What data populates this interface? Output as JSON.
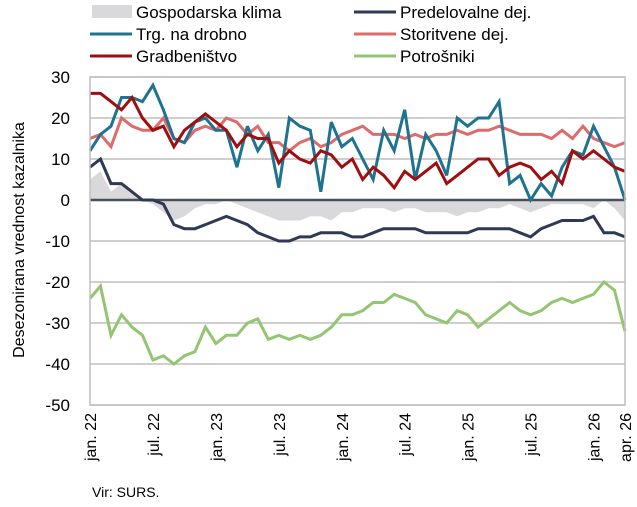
{
  "chart_data": {
    "type": "line",
    "title": "",
    "xlabel": "",
    "ylabel": "Desezonirana vrednost kazalnika",
    "ylim": [
      -50,
      30
    ],
    "yticks": [
      30,
      20,
      10,
      0,
      -10,
      -20,
      -30,
      -40,
      -50
    ],
    "grid": true,
    "legend_position": "top",
    "x_start": "jan. 22",
    "x_end": "apr. 26",
    "xtick_labels": [
      {
        "index": 0,
        "label": "jan. 22"
      },
      {
        "index": 6,
        "label": "jul. 22"
      },
      {
        "index": 12,
        "label": "jan. 23"
      },
      {
        "index": 18,
        "label": "jul. 23"
      },
      {
        "index": 24,
        "label": "jan. 24"
      },
      {
        "index": 30,
        "label": "jul. 24"
      },
      {
        "index": 36,
        "label": "jan. 25"
      },
      {
        "index": 42,
        "label": "jul. 25"
      },
      {
        "index": 48,
        "label": "jan. 26"
      },
      {
        "index": 51,
        "label": "apr. 26"
      }
    ],
    "series": [
      {
        "name": "Gospodarska klima",
        "kind": "area",
        "color": "#d9d9db",
        "values": [
          5,
          7,
          2,
          4,
          2,
          0,
          -1,
          -3,
          -5,
          -4,
          -2,
          -1,
          -1,
          0,
          -1,
          -2,
          -3,
          -4,
          -5,
          -5,
          -5,
          -4,
          -4,
          -5,
          -3,
          -3,
          -2,
          -2,
          -2,
          -3,
          -2,
          -2,
          -3,
          -3,
          -3,
          -4,
          -3,
          -3,
          -2,
          -2,
          -1,
          -2,
          -3,
          -2,
          -1,
          -1,
          -1,
          -1,
          -2,
          0,
          -2,
          -5
        ]
      },
      {
        "name": "Predelovalne dej.",
        "kind": "line",
        "color": "#2e3a55",
        "values": [
          8,
          10,
          4,
          4,
          2,
          0,
          0,
          -1,
          -6,
          -7,
          -7,
          -6,
          -5,
          -4,
          -5,
          -6,
          -8,
          -9,
          -10,
          -10,
          -9,
          -9,
          -8,
          -8,
          -8,
          -9,
          -9,
          -8,
          -7,
          -7,
          -7,
          -7,
          -8,
          -8,
          -8,
          -8,
          -8,
          -7,
          -7,
          -7,
          -7,
          -8,
          -9,
          -7,
          -6,
          -5,
          -5,
          -5,
          -4,
          -8,
          -8,
          -9
        ]
      },
      {
        "name": "Trg. na drobno",
        "kind": "line",
        "color": "#1f7391",
        "values": [
          12,
          16,
          18,
          25,
          25,
          24,
          28,
          22,
          15,
          14,
          19,
          20,
          17,
          17,
          8,
          18,
          12,
          16,
          3,
          20,
          18,
          17,
          2,
          19,
          13,
          15,
          10,
          5,
          17,
          12,
          22,
          5,
          16,
          12,
          6,
          20,
          18,
          20,
          20,
          24,
          4,
          6,
          0,
          4,
          1,
          8,
          12,
          11,
          18,
          13,
          8,
          0
        ]
      },
      {
        "name": "Storitvene dej.",
        "kind": "line",
        "color": "#dd6b6b",
        "values": [
          15,
          16,
          13,
          20,
          18,
          17,
          17,
          20,
          15,
          14,
          17,
          18,
          17,
          20,
          19,
          16,
          18,
          14,
          14,
          12,
          14,
          15,
          13,
          14,
          16,
          17,
          18,
          16,
          16,
          16,
          15,
          16,
          15,
          16,
          16,
          17,
          16,
          17,
          17,
          18,
          17,
          16,
          16,
          16,
          15,
          17,
          15,
          18,
          15,
          14,
          13,
          14
        ]
      },
      {
        "name": "Gradbeništvo",
        "kind": "line",
        "color": "#a00f10",
        "values": [
          26,
          26,
          24,
          22,
          25,
          20,
          17,
          18,
          13,
          17,
          19,
          21,
          19,
          17,
          13,
          16,
          15,
          15,
          9,
          12,
          10,
          9,
          12,
          11,
          8,
          10,
          5,
          8,
          6,
          3,
          7,
          5,
          7,
          9,
          4,
          6,
          8,
          10,
          10,
          6,
          8,
          9,
          8,
          5,
          7,
          4,
          12,
          10,
          12,
          10,
          8,
          7
        ]
      },
      {
        "name": "Potrošniki",
        "kind": "line",
        "color": "#93c572",
        "values": [
          -24,
          -21,
          -33,
          -28,
          -31,
          -33,
          -39,
          -38,
          -40,
          -38,
          -37,
          -31,
          -35,
          -33,
          -33,
          -30,
          -29,
          -34,
          -33,
          -34,
          -33,
          -34,
          -33,
          -31,
          -28,
          -28,
          -27,
          -25,
          -25,
          -23,
          -24,
          -25,
          -28,
          -29,
          -30,
          -27,
          -28,
          -31,
          -29,
          -27,
          -25,
          -27,
          -28,
          -27,
          -25,
          -24,
          -25,
          -24,
          -23,
          -20,
          -22,
          -32
        ]
      }
    ]
  },
  "legend": {
    "items": [
      {
        "label": "Gospodarska klima"
      },
      {
        "label": "Predelovalne dej."
      },
      {
        "label": "Trg. na drobno"
      },
      {
        "label": "Storitvene dej."
      },
      {
        "label": "Gradbeništvo"
      },
      {
        "label": "Potrošniki"
      }
    ]
  },
  "source": "Vir: SURS."
}
